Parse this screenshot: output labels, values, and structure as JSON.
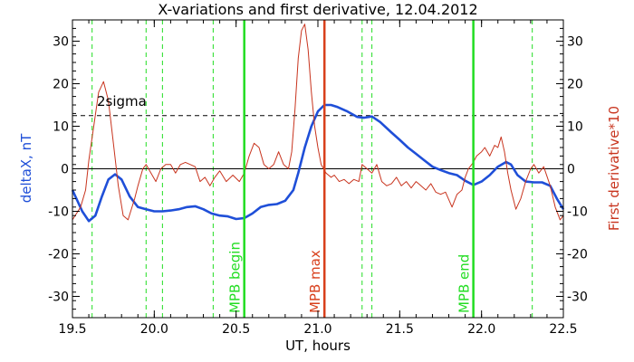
{
  "chart_data": {
    "type": "line",
    "title": "X-variations and first derivative, 12.04.2012",
    "xlabel": "UT, hours",
    "ylabel_left": "deltaX, nT",
    "ylabel_right": "First derivative*10",
    "xlim": [
      19.5,
      22.5
    ],
    "ylim": [
      -35,
      35
    ],
    "x_ticks": [
      19.5,
      20.0,
      20.5,
      21.0,
      21.5,
      22.0,
      22.5
    ],
    "x_tick_labels": [
      "19.5",
      "20.0",
      "20.5",
      "21.0",
      "21.5",
      "22.0",
      "22.5"
    ],
    "y_ticks": [
      -30,
      -20,
      -10,
      0,
      10,
      20,
      30
    ],
    "y_tick_labels": [
      "-30",
      "-20",
      "-10",
      "0",
      "10",
      "20",
      "30"
    ],
    "y_ticks_right": [
      -30,
      -20,
      -10,
      0,
      10,
      20,
      30
    ],
    "y_tick_labels_right": [
      "-30",
      "-20",
      "-10",
      "0",
      "10",
      "20",
      "30"
    ],
    "colors": {
      "deltaX": "#1f4fd8",
      "derivative": "#c8341e",
      "event_lines": "#22dd22",
      "max_line": "#d8401c",
      "axes": "#000000"
    },
    "series": [
      {
        "name": "deltaX",
        "color": "#1f4fd8",
        "points": [
          [
            19.5,
            -5
          ],
          [
            19.56,
            -10
          ],
          [
            19.6,
            -12.3
          ],
          [
            19.64,
            -11
          ],
          [
            19.68,
            -6.5
          ],
          [
            19.72,
            -2.5
          ],
          [
            19.76,
            -1.3
          ],
          [
            19.8,
            -2.5
          ],
          [
            19.85,
            -6.5
          ],
          [
            19.9,
            -9
          ],
          [
            19.95,
            -9.5
          ],
          [
            20.0,
            -10
          ],
          [
            20.05,
            -10
          ],
          [
            20.1,
            -9.8
          ],
          [
            20.15,
            -9.5
          ],
          [
            20.2,
            -9
          ],
          [
            20.25,
            -8.8
          ],
          [
            20.3,
            -9.5
          ],
          [
            20.35,
            -10.5
          ],
          [
            20.4,
            -11
          ],
          [
            20.45,
            -11.2
          ],
          [
            20.5,
            -11.8
          ],
          [
            20.55,
            -11.6
          ],
          [
            20.6,
            -10.5
          ],
          [
            20.65,
            -9
          ],
          [
            20.7,
            -8.5
          ],
          [
            20.75,
            -8.3
          ],
          [
            20.8,
            -7.5
          ],
          [
            20.85,
            -5
          ],
          [
            20.88,
            -1
          ],
          [
            20.92,
            5
          ],
          [
            20.96,
            10
          ],
          [
            21.0,
            13.5
          ],
          [
            21.04,
            15
          ],
          [
            21.08,
            15
          ],
          [
            21.12,
            14.5
          ],
          [
            21.18,
            13.5
          ],
          [
            21.24,
            12.2
          ],
          [
            21.28,
            12
          ],
          [
            21.33,
            12.3
          ],
          [
            21.38,
            11
          ],
          [
            21.45,
            8.5
          ],
          [
            21.5,
            6.8
          ],
          [
            21.55,
            5
          ],
          [
            21.6,
            3.5
          ],
          [
            21.65,
            2
          ],
          [
            21.7,
            0.5
          ],
          [
            21.75,
            -0.3
          ],
          [
            21.8,
            -1
          ],
          [
            21.85,
            -1.5
          ],
          [
            21.9,
            -2.8
          ],
          [
            21.95,
            -3.8
          ],
          [
            22.0,
            -3
          ],
          [
            22.05,
            -1.5
          ],
          [
            22.1,
            0.5
          ],
          [
            22.15,
            1.6
          ],
          [
            22.18,
            1
          ],
          [
            22.22,
            -1.5
          ],
          [
            22.27,
            -3
          ],
          [
            22.32,
            -3.2
          ],
          [
            22.37,
            -3.2
          ],
          [
            22.42,
            -4
          ],
          [
            22.46,
            -7
          ],
          [
            22.5,
            -9.5
          ]
        ]
      },
      {
        "name": "First derivative*10",
        "color": "#c8341e",
        "points": [
          [
            19.5,
            -12
          ],
          [
            19.55,
            -9
          ],
          [
            19.58,
            -5
          ],
          [
            19.6,
            2
          ],
          [
            19.63,
            10
          ],
          [
            19.66,
            18
          ],
          [
            19.69,
            20.5
          ],
          [
            19.72,
            16
          ],
          [
            19.75,
            6
          ],
          [
            19.78,
            -4
          ],
          [
            19.81,
            -11
          ],
          [
            19.84,
            -12
          ],
          [
            19.88,
            -7
          ],
          [
            19.9,
            -4
          ],
          [
            19.93,
            0
          ],
          [
            19.95,
            1
          ],
          [
            19.98,
            -1
          ],
          [
            20.01,
            -3
          ],
          [
            20.04,
            0
          ],
          [
            20.07,
            1
          ],
          [
            20.1,
            1
          ],
          [
            20.13,
            -1
          ],
          [
            20.16,
            1
          ],
          [
            20.19,
            1.5
          ],
          [
            20.22,
            1
          ],
          [
            20.25,
            0.5
          ],
          [
            20.28,
            -3
          ],
          [
            20.31,
            -2
          ],
          [
            20.34,
            -4
          ],
          [
            20.37,
            -2
          ],
          [
            20.4,
            -0.5
          ],
          [
            20.44,
            -3
          ],
          [
            20.48,
            -1.5
          ],
          [
            20.52,
            -3
          ],
          [
            20.55,
            -1
          ],
          [
            20.58,
            3
          ],
          [
            20.61,
            6
          ],
          [
            20.64,
            5
          ],
          [
            20.67,
            1
          ],
          [
            20.7,
            0
          ],
          [
            20.73,
            1
          ],
          [
            20.76,
            4
          ],
          [
            20.79,
            1
          ],
          [
            20.82,
            0
          ],
          [
            20.84,
            4
          ],
          [
            20.86,
            14
          ],
          [
            20.88,
            26
          ],
          [
            20.9,
            32.5
          ],
          [
            20.92,
            34
          ],
          [
            20.94,
            28
          ],
          [
            20.96,
            18
          ],
          [
            20.98,
            10
          ],
          [
            21.0,
            5
          ],
          [
            21.02,
            1
          ],
          [
            21.05,
            -1
          ],
          [
            21.08,
            -2
          ],
          [
            21.1,
            -1.5
          ],
          [
            21.13,
            -3
          ],
          [
            21.16,
            -2.5
          ],
          [
            21.19,
            -3.5
          ],
          [
            21.22,
            -2.5
          ],
          [
            21.25,
            -3
          ],
          [
            21.27,
            1
          ],
          [
            21.3,
            0
          ],
          [
            21.33,
            -1
          ],
          [
            21.36,
            1
          ],
          [
            21.39,
            -3
          ],
          [
            21.42,
            -4
          ],
          [
            21.45,
            -3.5
          ],
          [
            21.48,
            -2
          ],
          [
            21.51,
            -4
          ],
          [
            21.54,
            -3
          ],
          [
            21.57,
            -4.5
          ],
          [
            21.6,
            -3
          ],
          [
            21.63,
            -4
          ],
          [
            21.66,
            -5
          ],
          [
            21.69,
            -3.5
          ],
          [
            21.72,
            -5.5
          ],
          [
            21.75,
            -6
          ],
          [
            21.78,
            -5.5
          ],
          [
            21.82,
            -9
          ],
          [
            21.85,
            -6
          ],
          [
            21.88,
            -5
          ],
          [
            21.9,
            -2
          ],
          [
            21.92,
            0
          ],
          [
            21.95,
            1.5
          ],
          [
            21.97,
            3
          ],
          [
            22.0,
            4
          ],
          [
            22.02,
            5
          ],
          [
            22.05,
            3
          ],
          [
            22.08,
            5.5
          ],
          [
            22.1,
            5
          ],
          [
            22.12,
            7.5
          ],
          [
            22.14,
            4
          ],
          [
            22.16,
            -1
          ],
          [
            22.18,
            -5
          ],
          [
            22.21,
            -9.5
          ],
          [
            22.24,
            -7
          ],
          [
            22.27,
            -3
          ],
          [
            22.3,
            0
          ],
          [
            22.32,
            1
          ],
          [
            22.35,
            -1
          ],
          [
            22.38,
            0.5
          ],
          [
            22.42,
            -4
          ],
          [
            22.45,
            -9
          ],
          [
            22.48,
            -12
          ],
          [
            22.5,
            -11
          ]
        ]
      }
    ],
    "reference_lines": [
      {
        "kind": "horizontal",
        "y": 0,
        "style": "solid",
        "color": "#000000"
      },
      {
        "kind": "horizontal",
        "y": 12.5,
        "style": "dashed",
        "color": "#000000",
        "label": "2sigma"
      }
    ],
    "dashed_markers_x": [
      19.62,
      19.95,
      20.05,
      20.36,
      21.27,
      21.33,
      22.31
    ],
    "event_markers": [
      {
        "x": 20.55,
        "label": "MPB begin",
        "color": "#22dd22"
      },
      {
        "x": 21.04,
        "label": "MPB max",
        "color": "#d8401c"
      },
      {
        "x": 21.95,
        "label": "MPB end",
        "color": "#22dd22"
      }
    ]
  }
}
